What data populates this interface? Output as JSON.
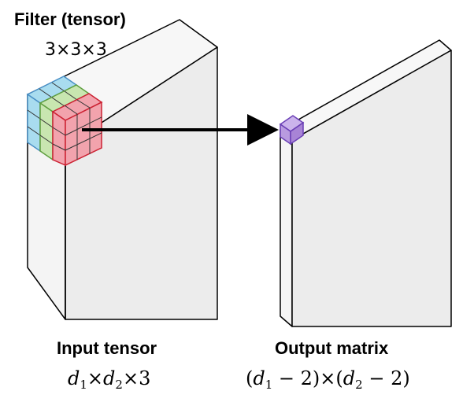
{
  "filter": {
    "title": "Filter (tensor)",
    "dims": "3×3×3",
    "layer_colors": [
      "#a9dcef",
      "#c8e6b0",
      "#f2a3ad"
    ],
    "layer_edge_colors": [
      "#4a90c6",
      "#5e9e3e",
      "#cc2233"
    ]
  },
  "input": {
    "title": "Input tensor",
    "dims": {
      "d1": "d",
      "s1": "1",
      "x1": "×",
      "d2": "d",
      "s2": "2",
      "tail": "×3"
    }
  },
  "output": {
    "title": "Output matrix",
    "dims": {
      "open1": "(",
      "d1": "d",
      "s1": "1",
      "m1": " − 2)×(",
      "d2": "d",
      "s2": "2",
      "m2": " − 2)"
    },
    "cell_color": "#b99be0",
    "cell_edge_color": "#6a3fb5"
  },
  "colors": {
    "box_face": "#ececec",
    "box_side": "#f4f4f4",
    "box_top": "#f7f7f7"
  }
}
